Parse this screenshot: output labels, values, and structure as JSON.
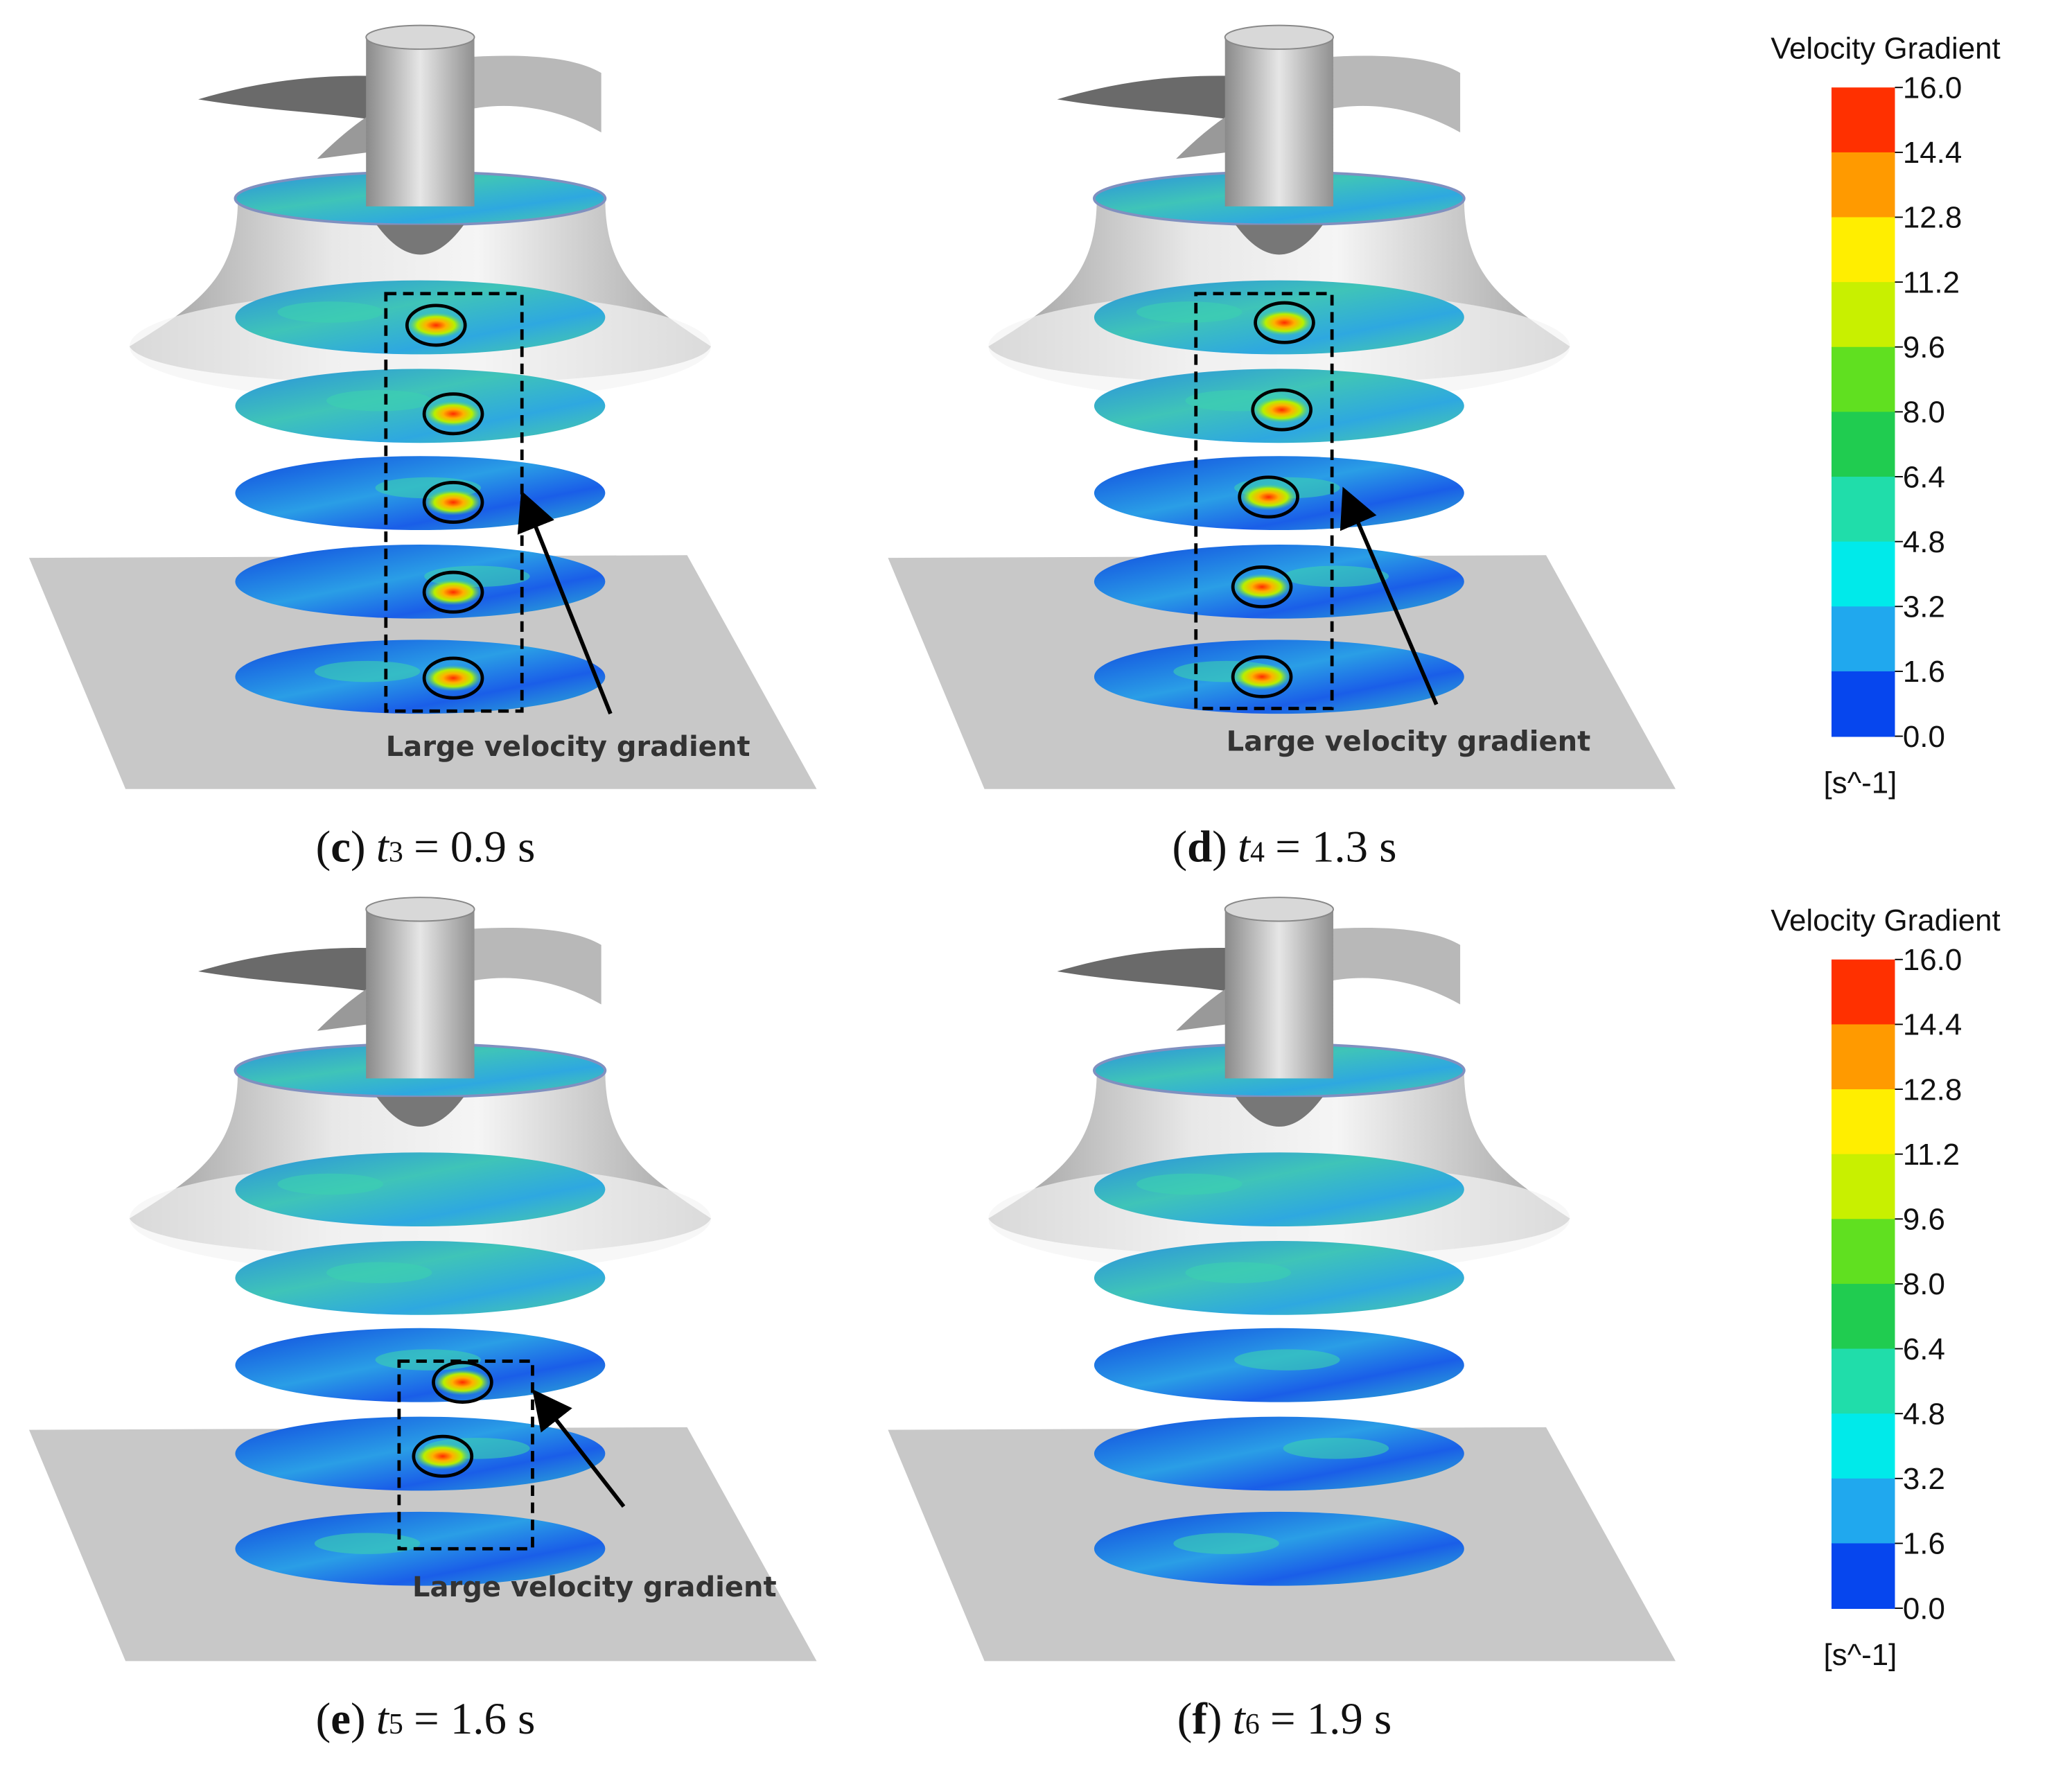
{
  "panels": [
    {
      "caption": {
        "open": "(",
        "letter": "c",
        "close": ")",
        "variable": "t",
        "subscript": "3",
        "value": "= 0.9 s"
      },
      "annotation": "Large velocity gradient"
    },
    {
      "caption": {
        "open": "(",
        "letter": "d",
        "close": ")",
        "variable": "t",
        "subscript": "4",
        "value": "= 1.3 s"
      },
      "annotation": "Large velocity gradient"
    },
    {
      "caption": {
        "open": "(",
        "letter": "e",
        "close": ")",
        "variable": "t",
        "subscript": "5",
        "value": "= 1.6 s"
      },
      "annotation": "Large velocity gradient"
    },
    {
      "caption": {
        "open": "(",
        "letter": "f",
        "close": ")",
        "variable": "t",
        "subscript": "6",
        "value": "= 1.9 s"
      }
    }
  ],
  "legends": [
    {
      "title": "Velocity Gradient",
      "ticks": [
        "16.0",
        "14.4",
        "12.8",
        "11.2",
        "9.6",
        "8.0",
        "6.4",
        "4.8",
        "3.2",
        "1.6",
        "0.0"
      ],
      "unit": "[s^-1]"
    },
    {
      "title": "Velocity Gradient",
      "ticks": [
        "16.0",
        "14.4",
        "12.8",
        "11.2",
        "9.6",
        "8.0",
        "6.4",
        "4.8",
        "3.2",
        "1.6",
        "0.0"
      ],
      "unit": "[s^-1]"
    }
  ]
}
